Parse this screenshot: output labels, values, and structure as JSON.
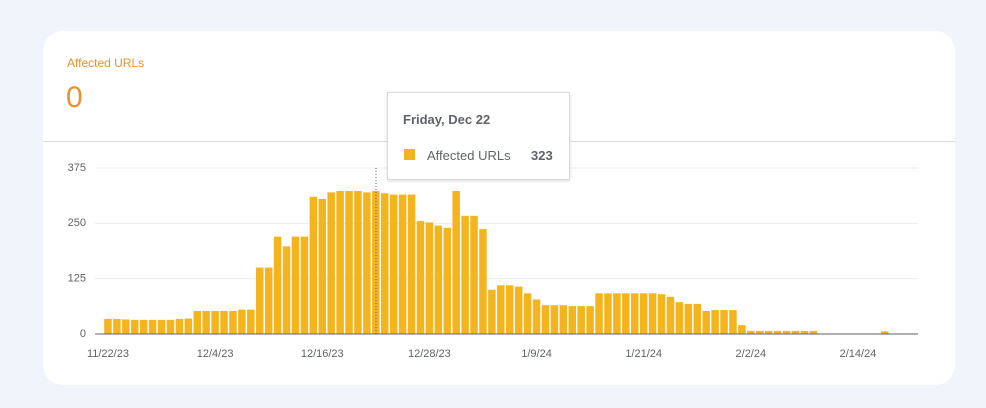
{
  "header": {
    "title": "Affected URLs",
    "value": "0"
  },
  "tooltip": {
    "title": "Friday, Dec 22",
    "label": "Affected URLs",
    "value": 323
  },
  "chart_data": {
    "type": "bar",
    "color": "#f4b41e",
    "grid": true,
    "ylim": [
      0,
      375
    ],
    "yticks": [
      0,
      125,
      250,
      375
    ],
    "categories": [
      "11/22/23",
      null,
      null,
      null,
      null,
      null,
      null,
      null,
      null,
      null,
      null,
      null,
      "12/4/23",
      null,
      null,
      null,
      null,
      null,
      null,
      null,
      null,
      null,
      null,
      null,
      "12/16/23",
      null,
      null,
      null,
      null,
      null,
      null,
      null,
      null,
      null,
      null,
      null,
      "12/28/23",
      null,
      null,
      null,
      null,
      null,
      null,
      null,
      null,
      null,
      null,
      null,
      "1/9/24",
      null,
      null,
      null,
      null,
      null,
      null,
      null,
      null,
      null,
      null,
      null,
      "1/21/24",
      null,
      null,
      null,
      null,
      null,
      null,
      null,
      null,
      null,
      null,
      null,
      "2/2/24",
      null,
      null,
      null,
      null,
      null,
      null,
      null,
      null,
      null,
      null,
      null,
      "2/14/24",
      null,
      null,
      null,
      null,
      null,
      null
    ],
    "values": [
      34,
      34,
      33,
      32,
      32,
      32,
      32,
      32,
      34,
      35,
      52,
      52,
      52,
      52,
      52,
      55,
      55,
      150,
      150,
      220,
      198,
      220,
      220,
      310,
      305,
      320,
      323,
      323,
      323,
      320,
      323,
      318,
      315,
      315,
      315,
      255,
      252,
      245,
      240,
      323,
      267,
      267,
      237,
      100,
      110,
      110,
      107,
      92,
      78,
      65,
      65,
      65,
      63,
      63,
      63,
      92,
      92,
      92,
      92,
      92,
      92,
      92,
      90,
      84,
      72,
      68,
      68,
      52,
      54,
      54,
      54,
      20,
      7,
      7,
      7,
      7,
      7,
      7,
      7,
      7,
      0,
      0,
      0,
      0,
      0,
      0,
      0,
      6,
      0,
      0,
      0
    ]
  }
}
